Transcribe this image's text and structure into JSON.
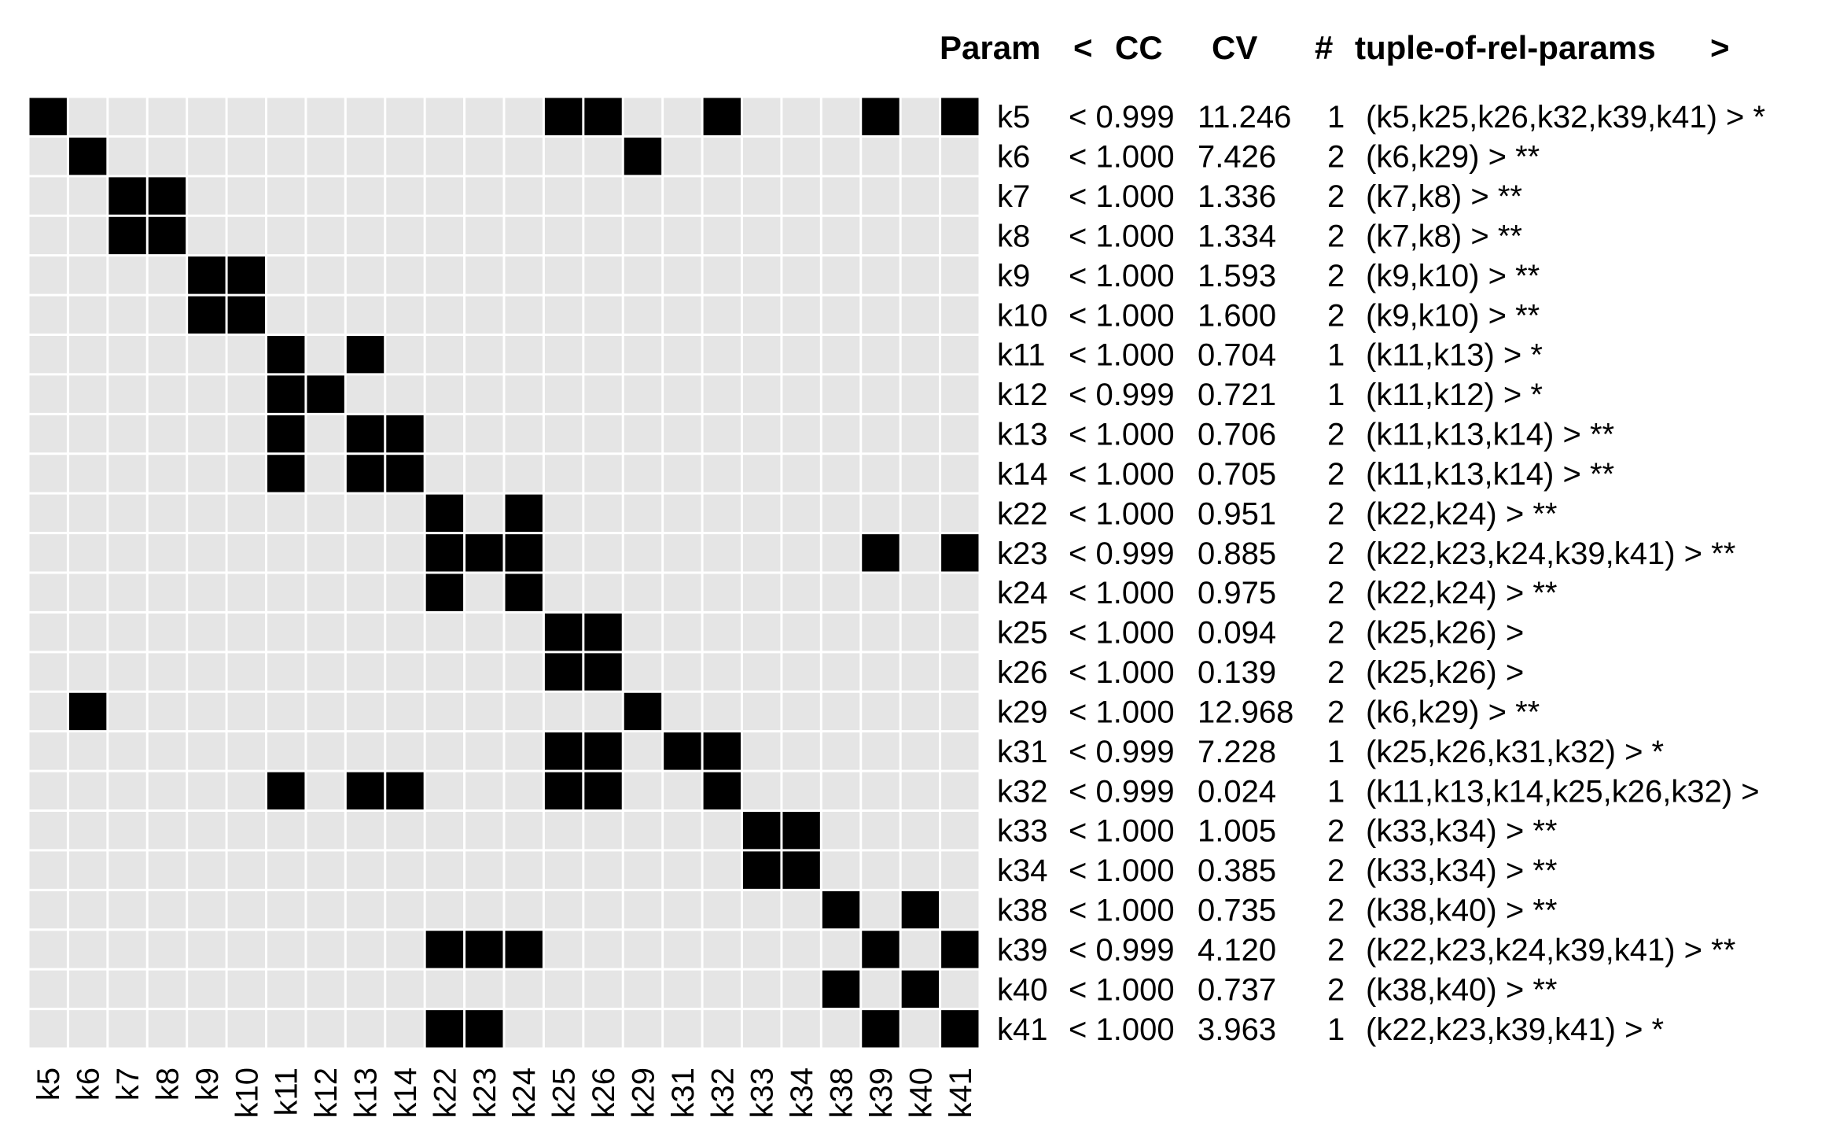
{
  "chart_data": {
    "type": "heatmap",
    "title": "",
    "xlabel": "",
    "ylabel": "",
    "legend": "none",
    "grid": true,
    "colors": {
      "on": "#000000",
      "off": "#e5e5e5",
      "grid": "#ffffff"
    },
    "params": [
      "k5",
      "k6",
      "k7",
      "k8",
      "k9",
      "k10",
      "k11",
      "k12",
      "k13",
      "k14",
      "k22",
      "k23",
      "k24",
      "k25",
      "k26",
      "k29",
      "k31",
      "k32",
      "k33",
      "k34",
      "k38",
      "k39",
      "k40",
      "k41"
    ],
    "header": {
      "param": "Param",
      "lt": "<",
      "cc": "CC",
      "cv": "CV",
      "num": "#",
      "tuple": "tuple-of-rel-params",
      "gt": ">"
    },
    "rows": [
      {
        "param": "k5",
        "cc": "< 0.999",
        "cv": "11.246",
        "n": "1",
        "tuple": "(k5,k25,k26,k32,k39,k41) > *",
        "related": [
          "k5",
          "k25",
          "k26",
          "k32",
          "k39",
          "k41"
        ]
      },
      {
        "param": "k6",
        "cc": "< 1.000",
        "cv": "7.426",
        "n": "2",
        "tuple": "(k6,k29) > **",
        "related": [
          "k6",
          "k29"
        ]
      },
      {
        "param": "k7",
        "cc": "< 1.000",
        "cv": "1.336",
        "n": "2",
        "tuple": "(k7,k8) > **",
        "related": [
          "k7",
          "k8"
        ]
      },
      {
        "param": "k8",
        "cc": "< 1.000",
        "cv": "1.334",
        "n": "2",
        "tuple": "(k7,k8) > **",
        "related": [
          "k7",
          "k8"
        ]
      },
      {
        "param": "k9",
        "cc": "< 1.000",
        "cv": "1.593",
        "n": "2",
        "tuple": "(k9,k10) > **",
        "related": [
          "k9",
          "k10"
        ]
      },
      {
        "param": "k10",
        "cc": "< 1.000",
        "cv": "1.600",
        "n": "2",
        "tuple": "(k9,k10) > **",
        "related": [
          "k9",
          "k10"
        ]
      },
      {
        "param": "k11",
        "cc": "< 1.000",
        "cv": "0.704",
        "n": "1",
        "tuple": "(k11,k13) > *",
        "related": [
          "k11",
          "k13"
        ]
      },
      {
        "param": "k12",
        "cc": "< 0.999",
        "cv": "0.721",
        "n": "1",
        "tuple": "(k11,k12) > *",
        "related": [
          "k11",
          "k12"
        ]
      },
      {
        "param": "k13",
        "cc": "< 1.000",
        "cv": "0.706",
        "n": "2",
        "tuple": "(k11,k13,k14) > **",
        "related": [
          "k11",
          "k13",
          "k14"
        ]
      },
      {
        "param": "k14",
        "cc": "< 1.000",
        "cv": "0.705",
        "n": "2",
        "tuple": "(k11,k13,k14) > **",
        "related": [
          "k11",
          "k13",
          "k14"
        ]
      },
      {
        "param": "k22",
        "cc": "< 1.000",
        "cv": "0.951",
        "n": "2",
        "tuple": "(k22,k24) > **",
        "related": [
          "k22",
          "k24"
        ]
      },
      {
        "param": "k23",
        "cc": "< 0.999",
        "cv": "0.885",
        "n": "2",
        "tuple": "(k22,k23,k24,k39,k41) > **",
        "related": [
          "k22",
          "k23",
          "k24",
          "k39",
          "k41"
        ]
      },
      {
        "param": "k24",
        "cc": "< 1.000",
        "cv": "0.975",
        "n": "2",
        "tuple": "(k22,k24) > **",
        "related": [
          "k22",
          "k24"
        ]
      },
      {
        "param": "k25",
        "cc": "< 1.000",
        "cv": "0.094",
        "n": "2",
        "tuple": "(k25,k26) >",
        "related": [
          "k25",
          "k26"
        ]
      },
      {
        "param": "k26",
        "cc": "< 1.000",
        "cv": "0.139",
        "n": "2",
        "tuple": "(k25,k26) >",
        "related": [
          "k25",
          "k26"
        ]
      },
      {
        "param": "k29",
        "cc": "< 1.000",
        "cv": "12.968",
        "n": "2",
        "tuple": "(k6,k29) > **",
        "related": [
          "k6",
          "k29"
        ]
      },
      {
        "param": "k31",
        "cc": "< 0.999",
        "cv": "7.228",
        "n": "1",
        "tuple": "(k25,k26,k31,k32) > *",
        "related": [
          "k25",
          "k26",
          "k31",
          "k32"
        ]
      },
      {
        "param": "k32",
        "cc": "< 0.999",
        "cv": "0.024",
        "n": "1",
        "tuple": "(k11,k13,k14,k25,k26,k32) >",
        "related": [
          "k11",
          "k13",
          "k14",
          "k25",
          "k26",
          "k32"
        ]
      },
      {
        "param": "k33",
        "cc": "< 1.000",
        "cv": "1.005",
        "n": "2",
        "tuple": "(k33,k34) > **",
        "related": [
          "k33",
          "k34"
        ]
      },
      {
        "param": "k34",
        "cc": "< 1.000",
        "cv": "0.385",
        "n": "2",
        "tuple": "(k33,k34) > **",
        "related": [
          "k33",
          "k34"
        ]
      },
      {
        "param": "k38",
        "cc": "< 1.000",
        "cv": "0.735",
        "n": "2",
        "tuple": "(k38,k40) > **",
        "related": [
          "k38",
          "k40"
        ]
      },
      {
        "param": "k39",
        "cc": "< 0.999",
        "cv": "4.120",
        "n": "2",
        "tuple": "(k22,k23,k24,k39,k41) > **",
        "related": [
          "k22",
          "k23",
          "k24",
          "k39",
          "k41"
        ]
      },
      {
        "param": "k40",
        "cc": "< 1.000",
        "cv": "0.737",
        "n": "2",
        "tuple": "(k38,k40) > **",
        "related": [
          "k38",
          "k40"
        ]
      },
      {
        "param": "k41",
        "cc": "< 1.000",
        "cv": "3.963",
        "n": "1",
        "tuple": "(k22,k23,k39,k41) > *",
        "related": [
          "k22",
          "k23",
          "k39",
          "k41"
        ]
      }
    ]
  }
}
